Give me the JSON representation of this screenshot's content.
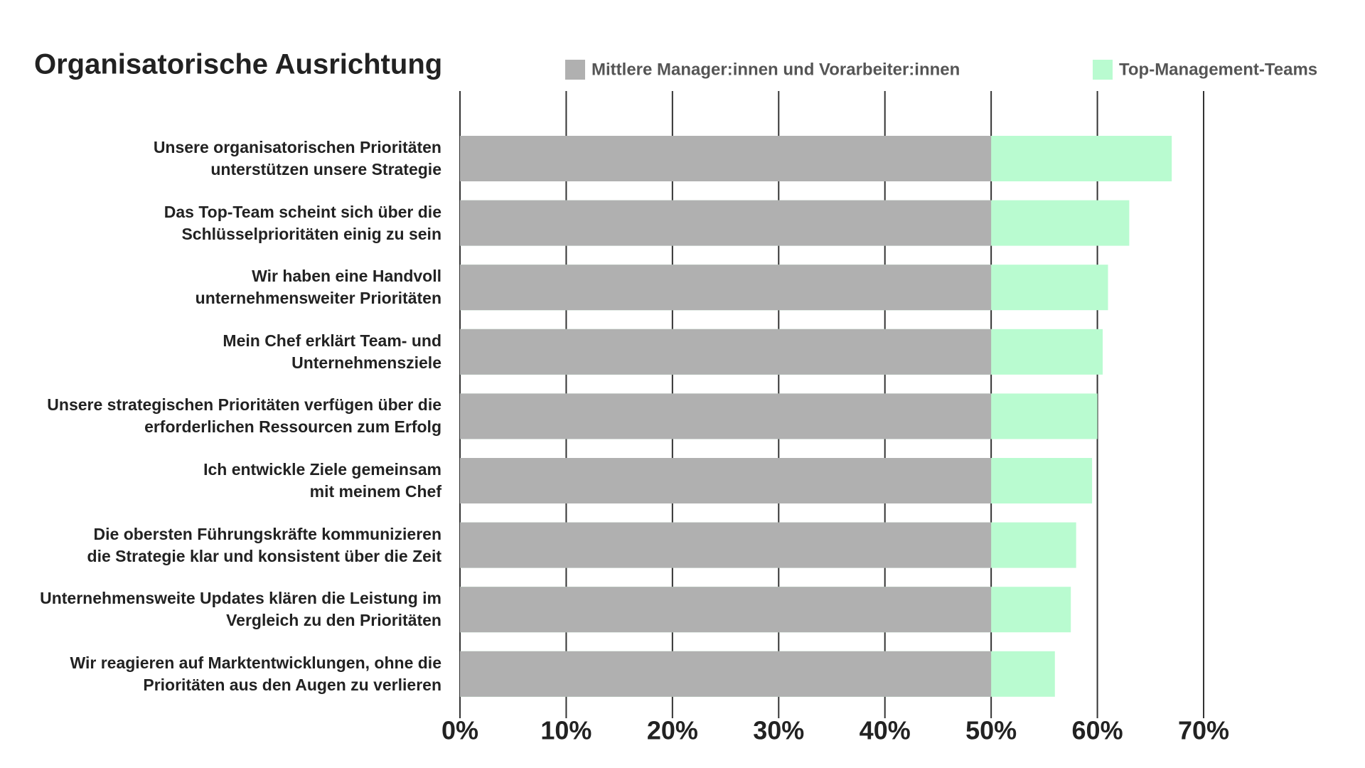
{
  "chart_data": {
    "type": "bar",
    "orientation": "horizontal",
    "title": "Organisatorische Ausrichtung",
    "categories": [
      "Unsere organisatorischen Prioritäten\nunterstützen unsere Strategie",
      "Das Top-Team scheint sich über die\nSchlüsselprioritäten einig zu sein",
      "Wir haben eine Handvoll\nunternehmensweiter Prioritäten",
      "Mein Chef erklärt Team- und\nUnternehmensziele",
      "Unsere strategischen Prioritäten verfügen über die\nerforderlichen Ressourcen zum Erfolg",
      "Ich entwickle Ziele gemeinsam\nmit meinem Chef",
      "Die obersten Führungskräfte kommunizieren\ndie Strategie klar und konsistent über die Zeit",
      "Unternehmensweite Updates klären die Leistung im\nVergleich zu den Prioritäten",
      "Wir reagieren auf Marktentwicklungen, ohne die\nPrioritäten aus den Augen zu verlieren"
    ],
    "series": [
      {
        "name": "Mittlere Manager:innen und Vorarbeiter:innen",
        "color": "#b0b0b0",
        "values": [
          50,
          50,
          50,
          50,
          50,
          50,
          50,
          50,
          50
        ]
      },
      {
        "name": "Top-Management-Teams",
        "color": "#b9fbd0",
        "values": [
          67,
          63,
          61,
          60.5,
          60,
          59.5,
          58,
          57.5,
          56
        ]
      }
    ],
    "xlim": [
      0,
      70
    ],
    "xticks": [
      {
        "value": 0,
        "label": "0%"
      },
      {
        "value": 10,
        "label": "10%"
      },
      {
        "value": 20,
        "label": "20%"
      },
      {
        "value": 30,
        "label": "30%"
      },
      {
        "value": 40,
        "label": "40%"
      },
      {
        "value": 50,
        "label": "50%"
      },
      {
        "value": 60,
        "label": "60%"
      },
      {
        "value": 70,
        "label": "70%"
      }
    ],
    "grid": true
  }
}
